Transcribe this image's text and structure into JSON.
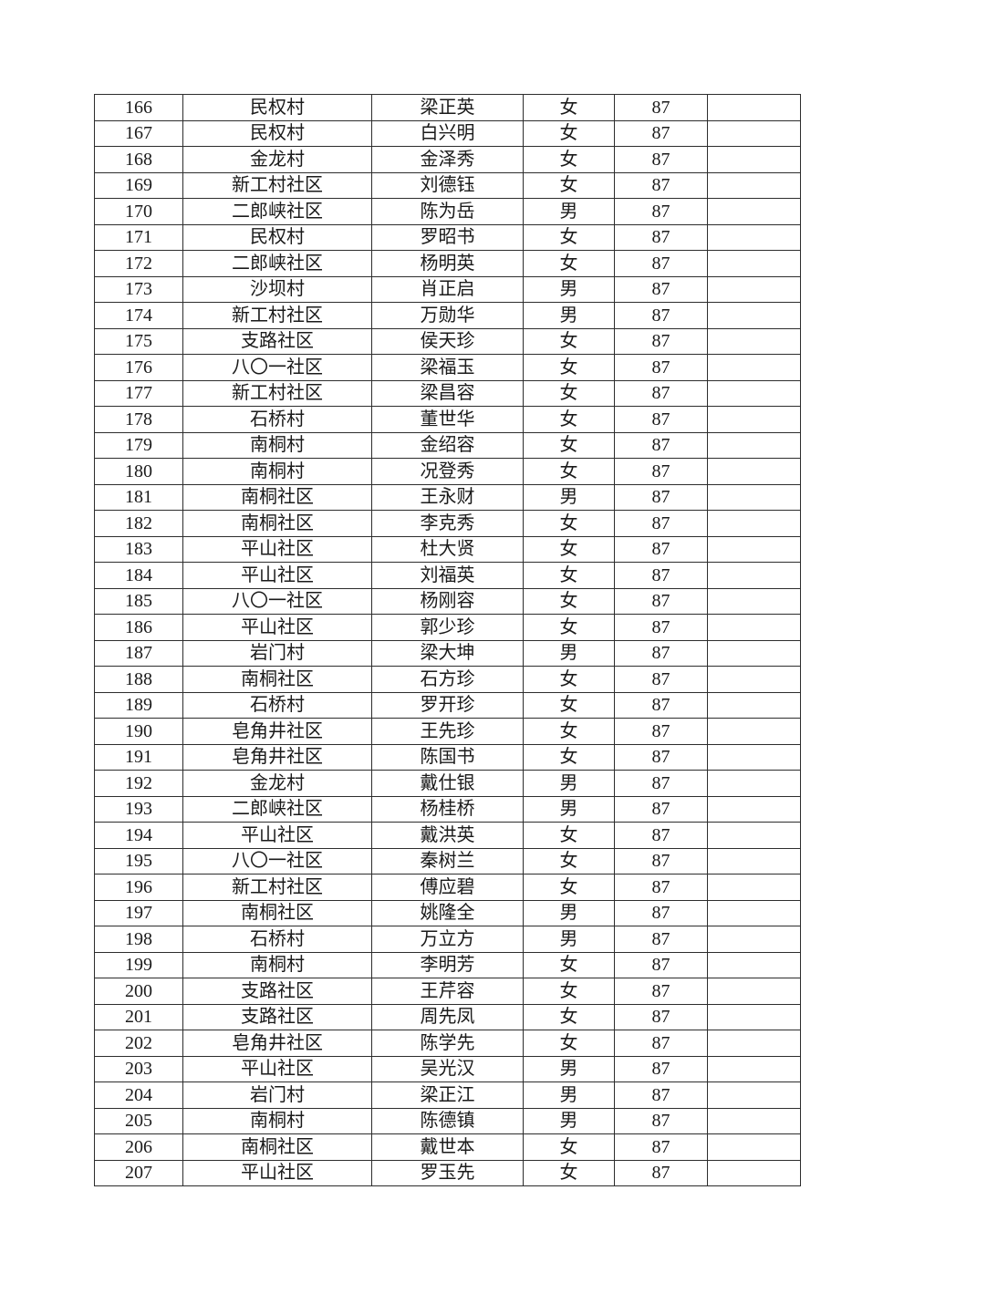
{
  "document": {
    "table": {
      "rows": [
        {
          "no": "166",
          "village": "民权村",
          "name": "梁正英",
          "gender": "女",
          "age": "87",
          "note": ""
        },
        {
          "no": "167",
          "village": "民权村",
          "name": "白兴明",
          "gender": "女",
          "age": "87",
          "note": ""
        },
        {
          "no": "168",
          "village": "金龙村",
          "name": "金泽秀",
          "gender": "女",
          "age": "87",
          "note": ""
        },
        {
          "no": "169",
          "village": "新工村社区",
          "name": "刘德钰",
          "gender": "女",
          "age": "87",
          "note": ""
        },
        {
          "no": "170",
          "village": "二郎峡社区",
          "name": "陈为岳",
          "gender": "男",
          "age": "87",
          "note": ""
        },
        {
          "no": "171",
          "village": "民权村",
          "name": "罗昭书",
          "gender": "女",
          "age": "87",
          "note": ""
        },
        {
          "no": "172",
          "village": "二郎峡社区",
          "name": "杨明英",
          "gender": "女",
          "age": "87",
          "note": ""
        },
        {
          "no": "173",
          "village": "沙坝村",
          "name": "肖正启",
          "gender": "男",
          "age": "87",
          "note": ""
        },
        {
          "no": "174",
          "village": "新工村社区",
          "name": "万勋华",
          "gender": "男",
          "age": "87",
          "note": ""
        },
        {
          "no": "175",
          "village": "支路社区",
          "name": "侯天珍",
          "gender": "女",
          "age": "87",
          "note": ""
        },
        {
          "no": "176",
          "village": "八〇一社区",
          "name": "梁福玉",
          "gender": "女",
          "age": "87",
          "note": ""
        },
        {
          "no": "177",
          "village": "新工村社区",
          "name": "梁昌容",
          "gender": "女",
          "age": "87",
          "note": ""
        },
        {
          "no": "178",
          "village": "石桥村",
          "name": "董世华",
          "gender": "女",
          "age": "87",
          "note": ""
        },
        {
          "no": "179",
          "village": "南桐村",
          "name": "金绍容",
          "gender": "女",
          "age": "87",
          "note": ""
        },
        {
          "no": "180",
          "village": "南桐村",
          "name": "况登秀",
          "gender": "女",
          "age": "87",
          "note": ""
        },
        {
          "no": "181",
          "village": "南桐社区",
          "name": "王永财",
          "gender": "男",
          "age": "87",
          "note": ""
        },
        {
          "no": "182",
          "village": "南桐社区",
          "name": "李克秀",
          "gender": "女",
          "age": "87",
          "note": ""
        },
        {
          "no": "183",
          "village": "平山社区",
          "name": "杜大贤",
          "gender": "女",
          "age": "87",
          "note": ""
        },
        {
          "no": "184",
          "village": "平山社区",
          "name": "刘福英",
          "gender": "女",
          "age": "87",
          "note": ""
        },
        {
          "no": "185",
          "village": "八〇一社区",
          "name": "杨刚容",
          "gender": "女",
          "age": "87",
          "note": ""
        },
        {
          "no": "186",
          "village": "平山社区",
          "name": "郭少珍",
          "gender": "女",
          "age": "87",
          "note": ""
        },
        {
          "no": "187",
          "village": "岩门村",
          "name": "梁大坤",
          "gender": "男",
          "age": "87",
          "note": ""
        },
        {
          "no": "188",
          "village": "南桐社区",
          "name": "石方珍",
          "gender": "女",
          "age": "87",
          "note": ""
        },
        {
          "no": "189",
          "village": "石桥村",
          "name": "罗开珍",
          "gender": "女",
          "age": "87",
          "note": ""
        },
        {
          "no": "190",
          "village": "皂角井社区",
          "name": "王先珍",
          "gender": "女",
          "age": "87",
          "note": ""
        },
        {
          "no": "191",
          "village": "皂角井社区",
          "name": "陈国书",
          "gender": "女",
          "age": "87",
          "note": ""
        },
        {
          "no": "192",
          "village": "金龙村",
          "name": "戴仕银",
          "gender": "男",
          "age": "87",
          "note": ""
        },
        {
          "no": "193",
          "village": "二郎峡社区",
          "name": "杨桂桥",
          "gender": "男",
          "age": "87",
          "note": ""
        },
        {
          "no": "194",
          "village": "平山社区",
          "name": "戴洪英",
          "gender": "女",
          "age": "87",
          "note": ""
        },
        {
          "no": "195",
          "village": "八〇一社区",
          "name": "秦树兰",
          "gender": "女",
          "age": "87",
          "note": ""
        },
        {
          "no": "196",
          "village": "新工村社区",
          "name": "傅应碧",
          "gender": "女",
          "age": "87",
          "note": ""
        },
        {
          "no": "197",
          "village": "南桐社区",
          "name": "姚隆全",
          "gender": "男",
          "age": "87",
          "note": ""
        },
        {
          "no": "198",
          "village": "石桥村",
          "name": "万立方",
          "gender": "男",
          "age": "87",
          "note": ""
        },
        {
          "no": "199",
          "village": "南桐村",
          "name": "李明芳",
          "gender": "女",
          "age": "87",
          "note": ""
        },
        {
          "no": "200",
          "village": "支路社区",
          "name": "王芹容",
          "gender": "女",
          "age": "87",
          "note": ""
        },
        {
          "no": "201",
          "village": "支路社区",
          "name": "周先凤",
          "gender": "女",
          "age": "87",
          "note": ""
        },
        {
          "no": "202",
          "village": "皂角井社区",
          "name": "陈学先",
          "gender": "女",
          "age": "87",
          "note": ""
        },
        {
          "no": "203",
          "village": "平山社区",
          "name": "吴光汉",
          "gender": "男",
          "age": "87",
          "note": ""
        },
        {
          "no": "204",
          "village": "岩门村",
          "name": "梁正江",
          "gender": "男",
          "age": "87",
          "note": ""
        },
        {
          "no": "205",
          "village": "南桐村",
          "name": "陈德镇",
          "gender": "男",
          "age": "87",
          "note": ""
        },
        {
          "no": "206",
          "village": "南桐社区",
          "name": "戴世本",
          "gender": "女",
          "age": "87",
          "note": ""
        },
        {
          "no": "207",
          "village": "平山社区",
          "name": "罗玉先",
          "gender": "女",
          "age": "87",
          "note": ""
        }
      ]
    },
    "colors": {
      "background": "#ffffff",
      "grid_line": "#2d2d2d",
      "text": "#1a1a1a"
    }
  }
}
